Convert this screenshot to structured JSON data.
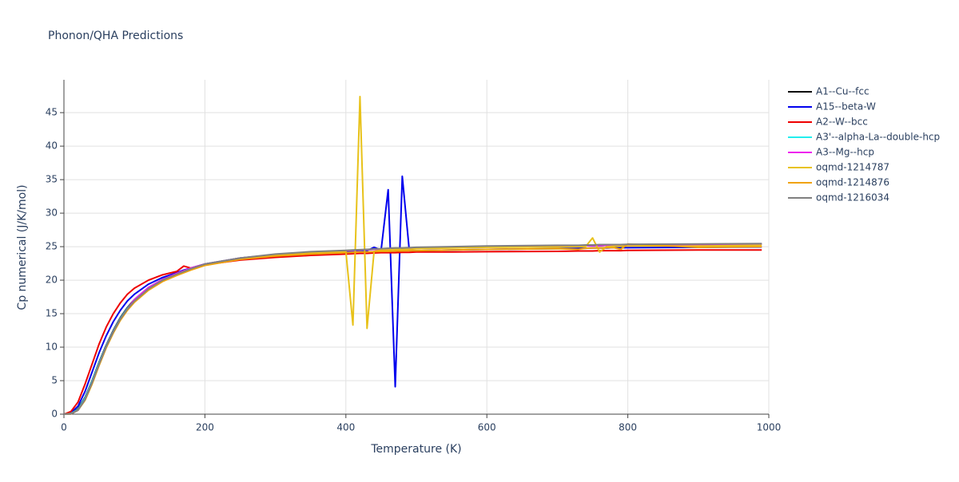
{
  "chart_data": {
    "type": "line",
    "title": "Phonon/QHA Predictions",
    "x_label": "Temperature (K)",
    "y_label": "Cp numerical (J/K/mol)",
    "x": [
      0,
      10,
      20,
      30,
      40,
      50,
      60,
      70,
      80,
      90,
      100,
      120,
      140,
      160,
      170,
      180,
      200,
      250,
      300,
      350,
      400,
      410,
      420,
      430,
      440,
      450,
      460,
      470,
      480,
      490,
      500,
      550,
      600,
      700,
      730,
      740,
      750,
      760,
      770,
      780,
      790,
      800,
      900,
      990
    ],
    "xlim": [
      0,
      1000
    ],
    "xticks": [
      0,
      200,
      400,
      600,
      800,
      1000
    ],
    "ylim": [
      0,
      49.9
    ],
    "yticks": [
      0,
      5,
      10,
      15,
      20,
      25,
      30,
      35,
      40,
      45
    ],
    "grid": true,
    "legend": "right",
    "series": [
      {
        "name": "A1--Cu--fcc",
        "color": "#000000",
        "values": [
          0,
          0.1,
          0.8,
          2.5,
          5,
          7.8,
          10.3,
          12.5,
          14.4,
          15.9,
          17.1,
          18.9,
          20.1,
          21,
          21.4,
          21.8,
          22.4,
          23.3,
          23.8,
          24.2,
          24.4,
          24.45,
          24.5,
          24.55,
          24.6,
          24.6,
          24.65,
          24.7,
          24.7,
          24.75,
          24.8,
          24.9,
          25,
          25.1,
          25.1,
          25.15,
          25.15,
          25.15,
          25.2,
          25.2,
          25.2,
          25.2,
          25.3,
          25.4
        ]
      },
      {
        "name": "A15--beta-W",
        "color": "#0000ee",
        "values": [
          0,
          0.2,
          1.2,
          3.4,
          6.3,
          9.2,
          11.7,
          13.8,
          15.5,
          16.9,
          17.9,
          19.4,
          20.4,
          21.1,
          21.5,
          21.8,
          22.4,
          23.2,
          23.7,
          24,
          24.2,
          24.3,
          24.4,
          24.4,
          24.9,
          24.5,
          33.5,
          4.1,
          35.5,
          24.4,
          24.4,
          24.5,
          24.6,
          24.7,
          24.75,
          24.75,
          24.8,
          24.8,
          24.8,
          24.85,
          24.85,
          24.85,
          24.9,
          24.95
        ]
      },
      {
        "name": "A2--W--bcc",
        "color": "#ee0000",
        "values": [
          0,
          0.4,
          1.8,
          4.5,
          7.5,
          10.5,
          13,
          15,
          16.6,
          17.9,
          18.8,
          20,
          20.8,
          21.3,
          22.1,
          21.8,
          22.3,
          23,
          23.4,
          23.7,
          23.9,
          23.95,
          24,
          24,
          24.05,
          24.1,
          24.1,
          24.1,
          24.15,
          24.15,
          24.2,
          24.2,
          24.25,
          24.3,
          24.35,
          24.35,
          24.35,
          24.4,
          24.4,
          24.4,
          24.4,
          24.45,
          24.5,
          24.5
        ]
      },
      {
        "name": "A3'--alpha-La--double-hcp",
        "color": "#22eeee",
        "values": [
          0,
          0.1,
          0.7,
          2.4,
          4.9,
          7.7,
          10.2,
          12.4,
          14.3,
          15.8,
          17,
          18.8,
          20,
          20.9,
          21.3,
          21.7,
          22.4,
          23.3,
          23.8,
          24.2,
          24.4,
          24.45,
          24.5,
          24.55,
          24.6,
          24.65,
          24.7,
          24.7,
          24.75,
          24.8,
          24.8,
          24.9,
          25,
          25.1,
          25.15,
          25.15,
          25.2,
          25.2,
          25.2,
          25.25,
          25.25,
          25.25,
          25.35,
          25.4
        ]
      },
      {
        "name": "A3--Mg--hcp",
        "color": "#ee22ee",
        "values": [
          0,
          0.05,
          0.6,
          2.2,
          4.7,
          7.5,
          10.1,
          12.3,
          14.2,
          15.7,
          17.1,
          18.9,
          20.1,
          21,
          21.4,
          21.8,
          22.4,
          23.3,
          23.8,
          24.2,
          24.4,
          24.45,
          24.5,
          24.55,
          24.6,
          24.6,
          24.65,
          24.7,
          24.7,
          24.75,
          24.8,
          24.9,
          25,
          25.1,
          25.1,
          25.15,
          25.15,
          25.15,
          25.2,
          25.2,
          25.2,
          25.2,
          25.3,
          25.4
        ]
      },
      {
        "name": "oqmd-1214787",
        "color": "#e8c21a",
        "values": [
          0,
          0.05,
          0.6,
          2.1,
          4.6,
          7.4,
          10,
          12.2,
          14.1,
          15.6,
          16.8,
          18.6,
          19.9,
          20.8,
          21.2,
          21.6,
          22.3,
          23.2,
          23.8,
          24.1,
          24.3,
          13.3,
          47.4,
          12.8,
          24.3,
          24.5,
          24.5,
          24.6,
          24.6,
          24.6,
          24.7,
          24.8,
          24.9,
          24.95,
          25,
          25,
          26.3,
          24.2,
          25,
          25.05,
          25.05,
          25.1,
          25.1,
          25.2
        ]
      },
      {
        "name": "oqmd-1214876",
        "color": "#f0a30a",
        "values": [
          0,
          0.05,
          0.6,
          2.1,
          4.5,
          7.3,
          9.9,
          12.1,
          14,
          15.5,
          16.7,
          18.5,
          19.8,
          20.7,
          21.1,
          21.5,
          22.2,
          23.1,
          23.6,
          23.9,
          24.1,
          24.15,
          24.2,
          24.2,
          24.25,
          24.3,
          24.3,
          24.35,
          24.35,
          24.4,
          24.4,
          24.5,
          24.6,
          24.7,
          24.6,
          24.75,
          24.8,
          24.8,
          24.85,
          24.85,
          24.6,
          25.4,
          24.9,
          25.0
        ]
      },
      {
        "name": "oqmd-1216034",
        "color": "#808080",
        "values": [
          0,
          0.05,
          0.6,
          2.2,
          4.7,
          7.5,
          10.1,
          12.3,
          14.2,
          15.7,
          16.9,
          18.7,
          20,
          20.9,
          21.3,
          21.7,
          22.4,
          23.3,
          23.9,
          24.25,
          24.45,
          24.5,
          24.55,
          24.6,
          24.65,
          24.7,
          24.75,
          24.8,
          24.8,
          24.85,
          24.9,
          25,
          25.1,
          25.2,
          25.2,
          25.25,
          25.25,
          25.3,
          25.3,
          25.3,
          25.3,
          25.35,
          25.4,
          25.45
        ]
      }
    ]
  }
}
